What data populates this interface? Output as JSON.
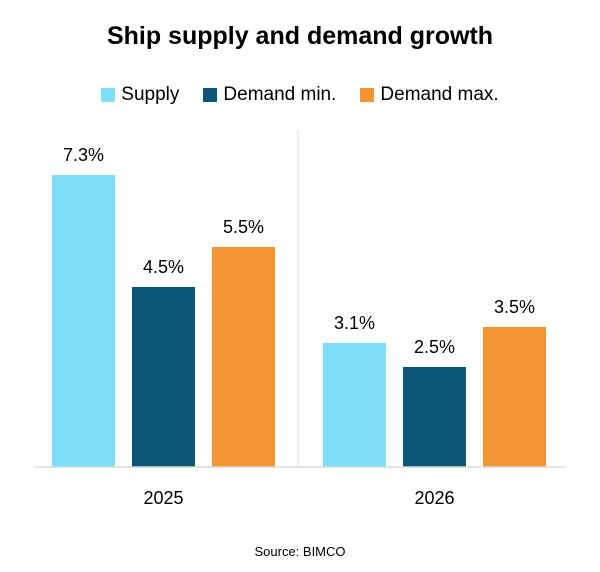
{
  "chart_data": {
    "type": "bar",
    "title": "Ship supply and demand growth",
    "categories": [
      "2025",
      "2026"
    ],
    "series": [
      {
        "name": "Supply",
        "values": [
          7.3,
          3.1
        ],
        "labels": [
          "7.3%",
          "3.1%"
        ],
        "color": "#7FDFFA"
      },
      {
        "name": "Demand min.",
        "values": [
          4.5,
          2.5
        ],
        "labels": [
          "4.5%",
          "2.5%"
        ],
        "color": "#0B5578"
      },
      {
        "name": "Demand max.",
        "values": [
          5.5,
          3.5
        ],
        "labels": [
          "5.5%",
          "3.5%"
        ],
        "color": "#F39431"
      }
    ],
    "ylim": [
      0,
      8.5
    ],
    "grid": false,
    "legend_position": "top",
    "source": "Source: BIMCO"
  }
}
